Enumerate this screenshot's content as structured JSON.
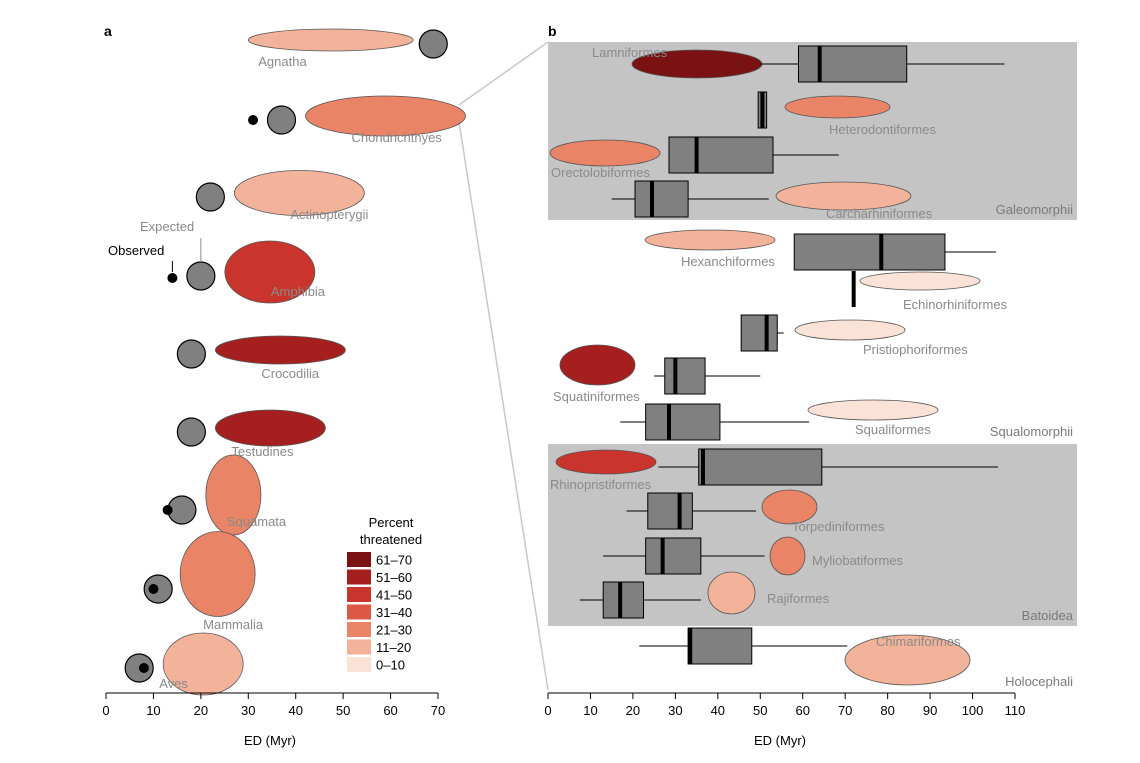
{
  "panel_a_label": "a",
  "panel_b_label": "b",
  "chart_data": [
    {
      "type": "scatter",
      "panel": "a",
      "xlabel": "ED (Myr)",
      "ylabel": "",
      "xlim": [
        0,
        70
      ],
      "xticks": [
        0,
        10,
        20,
        30,
        40,
        50,
        60,
        70
      ],
      "expected_label": "Expected",
      "observed_label": "Observed",
      "taxa": [
        {
          "name": "Agnatha",
          "expected": 69,
          "observed": null,
          "percent_threatened": "11–20"
        },
        {
          "name": "Chondrichthyes",
          "expected": 37,
          "observed": 31,
          "percent_threatened": "21–30"
        },
        {
          "name": "Actinopterygii",
          "expected": 22,
          "observed": null,
          "percent_threatened": "11–20"
        },
        {
          "name": "Amphibia",
          "expected": 20,
          "observed": 14,
          "percent_threatened": "41–50"
        },
        {
          "name": "Crocodilia",
          "expected": 18,
          "observed": null,
          "percent_threatened": "51–60"
        },
        {
          "name": "Testudines",
          "expected": 18,
          "observed": null,
          "percent_threatened": "51–60"
        },
        {
          "name": "Squamata",
          "expected": 16,
          "observed": 13,
          "percent_threatened": "21–30"
        },
        {
          "name": "Mammalia",
          "expected": 11,
          "observed": 10,
          "percent_threatened": "21–30"
        },
        {
          "name": "Aves",
          "expected": 7,
          "observed": 8,
          "percent_threatened": "11–20"
        }
      ],
      "legend": {
        "title": "Percent threatened",
        "entries": [
          {
            "label": "61–70",
            "color": "#7a1214"
          },
          {
            "label": "51–60",
            "color": "#a61f1f"
          },
          {
            "label": "41–50",
            "color": "#c9352c"
          },
          {
            "label": "31–40",
            "color": "#dc5a45"
          },
          {
            "label": "21–30",
            "color": "#e98467"
          },
          {
            "label": "11–20",
            "color": "#f2b39a"
          },
          {
            "label": "0–10",
            "color": "#fbe2d6"
          }
        ]
      }
    },
    {
      "type": "box",
      "panel": "b",
      "xlabel": "ED (Myr)",
      "ylabel": "",
      "xlim": [
        0,
        110
      ],
      "xticks": [
        0,
        10,
        20,
        30,
        40,
        50,
        60,
        70,
        80,
        90,
        100,
        110
      ],
      "groups": [
        {
          "name": "Galeomorphii",
          "shaded": true,
          "orders": [
            "Lamniformes",
            "Heterodontiformes",
            "Orectolobiformes",
            "Carcharhiniformes"
          ]
        },
        {
          "name": "Squalomorphii",
          "shaded": false,
          "orders": [
            "Hexanchiformes",
            "Echinorhiniformes",
            "Pristiophoriformes",
            "Squatiniformes",
            "Squaliformes"
          ]
        },
        {
          "name": "Batoidea",
          "shaded": true,
          "orders": [
            "Rhinopristiformes",
            "Torpediniformes",
            "Myliobatiformes",
            "Rajiformes"
          ]
        },
        {
          "name": "Holocephali",
          "shaded": false,
          "orders": [
            "Chimariformes"
          ]
        }
      ],
      "orders": [
        {
          "name": "Lamniformes",
          "min": 50,
          "q1": 59,
          "median": 64,
          "q3": 84.5,
          "max": 107.5,
          "percent_threatened": "61–70"
        },
        {
          "name": "Heterodontiformes",
          "min": 49.5,
          "q1": 49.5,
          "median": 50.5,
          "q3": 51.5,
          "max": 51.5,
          "percent_threatened": "21–30"
        },
        {
          "name": "Orectolobiformes",
          "min": 28.5,
          "q1": 28.5,
          "median": 35,
          "q3": 53,
          "max": 68.5,
          "percent_threatened": "21–30"
        },
        {
          "name": "Carcharhiniformes",
          "min": 15,
          "q1": 20.5,
          "median": 24.5,
          "q3": 33,
          "max": 52,
          "percent_threatened": "11–20"
        },
        {
          "name": "Hexanchiformes",
          "min": 58,
          "q1": 58,
          "median": 78.5,
          "q3": 93.5,
          "max": 105.5,
          "percent_threatened": "11–20"
        },
        {
          "name": "Echinorhiniformes",
          "min": 72,
          "q1": 72,
          "median": 72,
          "q3": 72,
          "max": 72,
          "percent_threatened": "0–10"
        },
        {
          "name": "Pristiophoriformes",
          "min": 45.5,
          "q1": 45.5,
          "median": 51.5,
          "q3": 54,
          "max": 55.5,
          "percent_threatened": "0–10"
        },
        {
          "name": "Squatiniformes",
          "min": 25,
          "q1": 27.5,
          "median": 30,
          "q3": 37,
          "max": 50,
          "percent_threatened": "51–60"
        },
        {
          "name": "Squaliformes",
          "min": 17,
          "q1": 23,
          "median": 28.5,
          "q3": 40.5,
          "max": 61.5,
          "percent_threatened": "0–10"
        },
        {
          "name": "Rhinopristiformes",
          "min": 26,
          "q1": 35.5,
          "median": 36.5,
          "q3": 64.5,
          "max": 106,
          "percent_threatened": "41–50"
        },
        {
          "name": "Torpediniformes",
          "min": 18.5,
          "q1": 23.5,
          "median": 31,
          "q3": 34,
          "max": 49,
          "percent_threatened": "21–30"
        },
        {
          "name": "Myliobatiformes",
          "min": 13,
          "q1": 23,
          "median": 27,
          "q3": 36,
          "max": 51,
          "percent_threatened": "21–30"
        },
        {
          "name": "Rajiformes",
          "min": 7.5,
          "q1": 13,
          "median": 17,
          "q3": 22.5,
          "max": 36,
          "percent_threatened": "11–20"
        },
        {
          "name": "Chimariformes",
          "min": 21.5,
          "q1": 33,
          "median": 33.5,
          "q3": 48,
          "max": 70.5,
          "percent_threatened": "11–20"
        }
      ]
    }
  ]
}
